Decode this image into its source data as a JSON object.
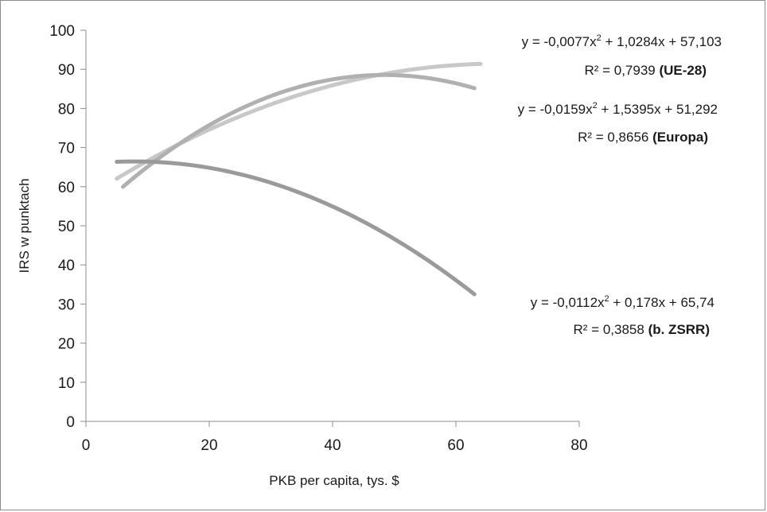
{
  "chart_data": {
    "type": "line",
    "xlabel": "PKB per capita, tys. $",
    "ylabel": "IRS w punktach",
    "xlim": [
      0,
      80
    ],
    "ylim": [
      0,
      100
    ],
    "x_ticks": [
      "0",
      "20",
      "40",
      "60",
      "80"
    ],
    "y_ticks": [
      "0",
      "10",
      "20",
      "30",
      "40",
      "50",
      "60",
      "70",
      "80",
      "90",
      "100"
    ],
    "grid": false,
    "series": [
      {
        "key": "ue28",
        "color": "#c8c8c8",
        "x_range": [
          5,
          64
        ],
        "coefficients": {
          "a": -0.0077,
          "b": 1.0284,
          "c": 57.103
        },
        "equation": {
          "prefix": "y = -0,0077x",
          "exp": "2",
          "suffix": " + 1,0284x + 57,103"
        },
        "r2": {
          "prefix": "R² = 0,7939 ",
          "open": "(",
          "name": "UE-28",
          "close": ")"
        }
      },
      {
        "key": "europa",
        "color": "#b0b0b0",
        "x_range": [
          6,
          63
        ],
        "coefficients": {
          "a": -0.0159,
          "b": 1.5395,
          "c": 51.292
        },
        "equation": {
          "prefix": "y = -0,0159x",
          "exp": "2",
          "suffix": " + 1,5395x + 51,292"
        },
        "r2": {
          "prefix": "R² = 0,8656 ",
          "open": "(",
          "name": "Europa",
          "close": ")"
        }
      },
      {
        "key": "zsrr",
        "color": "#9a9a9a",
        "x_range": [
          5,
          63
        ],
        "coefficients": {
          "a": -0.0112,
          "b": 0.178,
          "c": 65.74
        },
        "equation": {
          "prefix": "y = -0,0112x",
          "exp": "2",
          "suffix": " + 0,178x + 65,74"
        },
        "r2": {
          "prefix": "R² = 0,3858 ",
          "open": "",
          "name": "(b. ZSRR)",
          "close": ""
        }
      }
    ]
  }
}
